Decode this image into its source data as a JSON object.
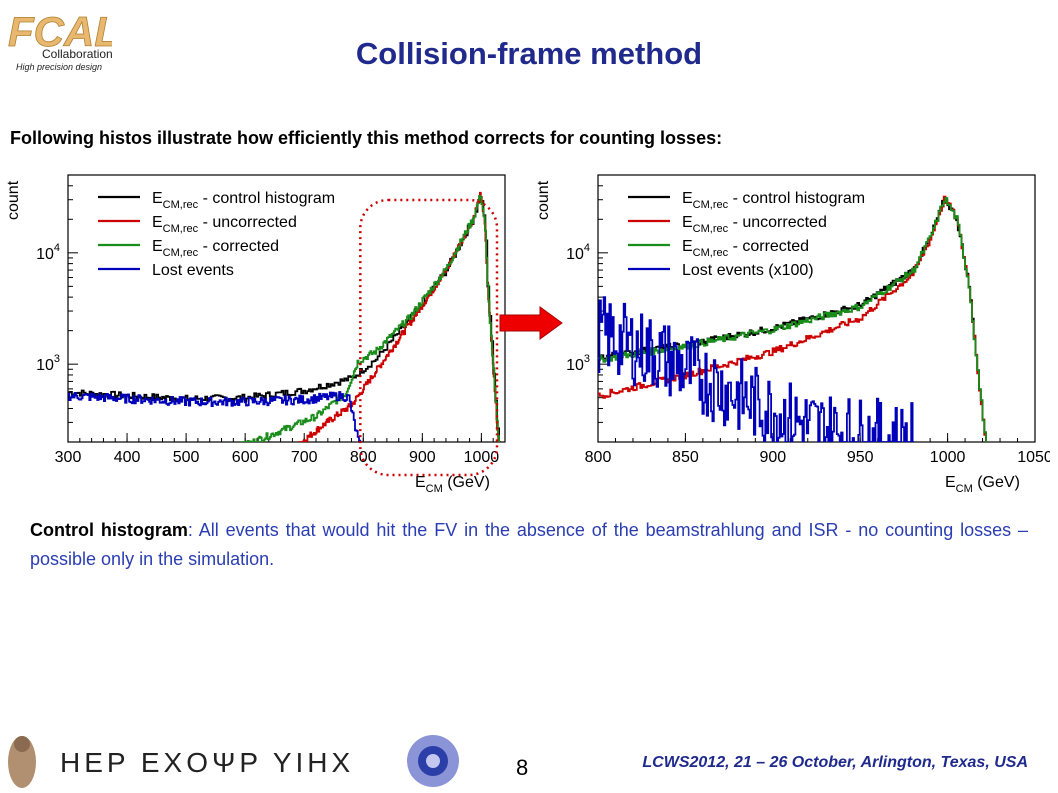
{
  "page": {
    "title": "Collision-frame method",
    "subtitle": "Following histos illustrate how efficiently this method corrects for counting losses:",
    "caption_bold": "Control histogram",
    "caption_rest": ": All events that would hit the FV in the absence of the beamstrahlung and ISR - no counting losses – possible only in the simulation.",
    "page_number": "8",
    "conference": "LCWS2012, 21 – 26 October, Arlington, Texas, USA",
    "logo": {
      "word1": "Collaboration",
      "word2": "High precision design"
    },
    "footer_glyphs": "ΗΕΡ ΕΧΟΨΡ ΥΙΗΧ",
    "colors": {
      "title": "#1f2a8c",
      "control": "#000000",
      "uncorrected": "#cc0000",
      "corrected": "#1a8c1a",
      "lost": "#0000bb",
      "arrow": "#ee0000",
      "circle": "#cc0000"
    }
  },
  "chart_data": [
    {
      "type": "line",
      "ylabel": "count",
      "xlabel_main": "E",
      "xlabel_sub": "CM",
      "xlabel_unit": "(GeV)",
      "xlim": [
        300,
        1040
      ],
      "log_y": true,
      "ylim": [
        200,
        50000
      ],
      "xticks": [
        "300",
        "400",
        "500",
        "600",
        "700",
        "800",
        "900",
        "1000"
      ],
      "xtick_values": [
        300,
        400,
        500,
        600,
        700,
        800,
        900,
        1000
      ],
      "yticks": [
        {
          "base": "10",
          "exp": "3",
          "value": 1000
        },
        {
          "base": "10",
          "exp": "4",
          "value": 10000
        }
      ],
      "legend": [
        {
          "sub": "CM,rec",
          "text": " - control histogram",
          "color": "#000000"
        },
        {
          "sub": "CM,rec",
          "text": " - uncorrected",
          "color": "#cc0000"
        },
        {
          "sub": "CM,rec",
          "text": " - corrected",
          "color": "#1a8c1a"
        },
        {
          "sub": "",
          "text": "Lost events",
          "color": "#0000bb"
        }
      ],
      "series": [
        {
          "name": "control histogram",
          "color": "#000000",
          "x": [
            300,
            400,
            500,
            600,
            700,
            780,
            820,
            880,
            940,
            985,
            998,
            1005,
            1010,
            1030
          ],
          "y": [
            560,
            520,
            490,
            500,
            580,
            750,
            1100,
            2600,
            7000,
            20000,
            33000,
            20000,
            5000,
            150
          ]
        },
        {
          "name": "uncorrected",
          "color": "#cc0000",
          "x": [
            690,
            730,
            780,
            820,
            880,
            940,
            985,
            998,
            1005,
            1010,
            1030
          ],
          "y": [
            190,
            280,
            430,
            850,
            2400,
            7000,
            20000,
            33000,
            20000,
            5000,
            150
          ]
        },
        {
          "name": "corrected",
          "color": "#1a8c1a",
          "x": [
            590,
            650,
            720,
            770,
            790,
            820,
            880,
            940,
            985,
            998,
            1005,
            1010,
            1030
          ],
          "y": [
            180,
            240,
            340,
            550,
            1050,
            1300,
            2700,
            7200,
            20000,
            33000,
            20000,
            5000,
            150
          ]
        },
        {
          "name": "Lost events",
          "color": "#0000bb",
          "x": [
            300,
            400,
            500,
            600,
            700,
            760,
            775,
            785,
            795
          ],
          "y": [
            520,
            490,
            460,
            460,
            480,
            520,
            500,
            280,
            170
          ]
        }
      ]
    },
    {
      "type": "line",
      "ylabel": "count",
      "xlabel_main": "E",
      "xlabel_sub": "CM",
      "xlabel_unit": "(GeV)",
      "xlim": [
        800,
        1050
      ],
      "log_y": true,
      "ylim": [
        200,
        50000
      ],
      "xticks": [
        "800",
        "850",
        "900",
        "950",
        "1000",
        "1050"
      ],
      "xtick_values": [
        800,
        850,
        900,
        950,
        1000,
        1050
      ],
      "yticks": [
        {
          "base": "10",
          "exp": "3",
          "value": 1000
        },
        {
          "base": "10",
          "exp": "4",
          "value": 10000
        }
      ],
      "legend": [
        {
          "sub": "CM,rec",
          "text": " - control histogram",
          "color": "#000000"
        },
        {
          "sub": "CM,rec",
          "text": " - uncorrected",
          "color": "#cc0000"
        },
        {
          "sub": "CM,rec",
          "text": " - corrected",
          "color": "#1a8c1a"
        },
        {
          "sub": "",
          "text": "Lost events (x100)",
          "color": "#0000bb"
        }
      ],
      "series": [
        {
          "name": "control histogram",
          "color": "#000000",
          "x": [
            800,
            850,
            900,
            950,
            980,
            990,
            998,
            1005,
            1012,
            1018,
            1022
          ],
          "y": [
            1150,
            1500,
            2100,
            3400,
            7000,
            14000,
            31000,
            20000,
            5000,
            600,
            180
          ]
        },
        {
          "name": "uncorrected",
          "color": "#cc0000",
          "x": [
            800,
            850,
            900,
            950,
            980,
            990,
            998,
            1005,
            1012,
            1018,
            1022
          ],
          "y": [
            520,
            800,
            1300,
            2600,
            6500,
            13500,
            31000,
            20000,
            5000,
            600,
            180
          ]
        },
        {
          "name": "corrected",
          "color": "#1a8c1a",
          "x": [
            800,
            850,
            900,
            950,
            980,
            990,
            998,
            1005,
            1012,
            1018,
            1022
          ],
          "y": [
            1100,
            1450,
            2050,
            3300,
            6900,
            14000,
            31000,
            20000,
            5000,
            600,
            180
          ]
        },
        {
          "name": "Lost events (x100)",
          "color": "#0000bb",
          "x": [
            800,
            810,
            820,
            830,
            840,
            850,
            860,
            870,
            880,
            890,
            900,
            910,
            920,
            930,
            940,
            950,
            960,
            970,
            980
          ],
          "y": [
            1900,
            1700,
            1450,
            1300,
            1100,
            900,
            750,
            620,
            520,
            440,
            380,
            320,
            280,
            260,
            240,
            230,
            220,
            210,
            205
          ]
        }
      ]
    }
  ]
}
